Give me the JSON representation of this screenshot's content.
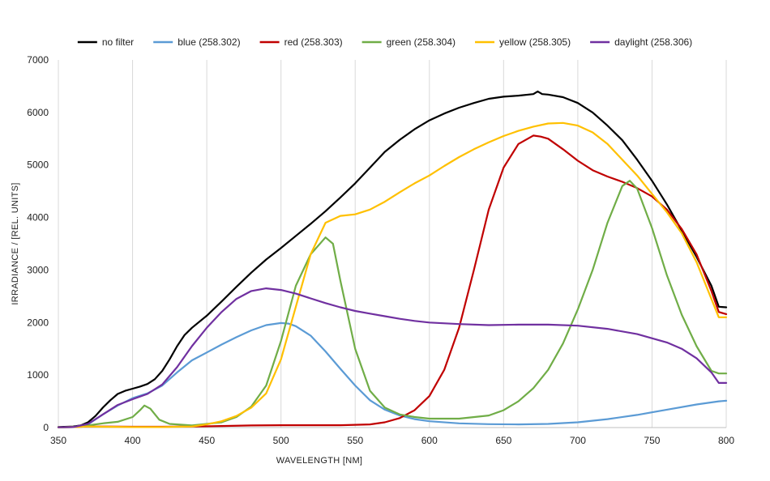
{
  "chart_data": {
    "type": "line",
    "title": "",
    "xlabel": "WAVELENGTH [NM]",
    "ylabel": "IRRADIANCE / [REL. UNITS]",
    "xlim": [
      350,
      800
    ],
    "ylim": [
      0,
      7000
    ],
    "x_ticks": [
      350,
      400,
      450,
      500,
      550,
      600,
      650,
      700,
      750,
      800
    ],
    "y_ticks": [
      0,
      1000,
      2000,
      3000,
      4000,
      5000,
      6000,
      7000
    ],
    "grid": "vertical",
    "legend_position": "top",
    "series": [
      {
        "name": "no filter",
        "color": "#000000",
        "points": [
          [
            350,
            10
          ],
          [
            360,
            20
          ],
          [
            365,
            40
          ],
          [
            370,
            100
          ],
          [
            375,
            220
          ],
          [
            380,
            380
          ],
          [
            385,
            520
          ],
          [
            390,
            640
          ],
          [
            395,
            700
          ],
          [
            400,
            740
          ],
          [
            405,
            780
          ],
          [
            410,
            830
          ],
          [
            415,
            920
          ],
          [
            420,
            1080
          ],
          [
            425,
            1300
          ],
          [
            430,
            1550
          ],
          [
            435,
            1760
          ],
          [
            440,
            1900
          ],
          [
            450,
            2130
          ],
          [
            460,
            2400
          ],
          [
            470,
            2680
          ],
          [
            480,
            2950
          ],
          [
            490,
            3200
          ],
          [
            500,
            3420
          ],
          [
            510,
            3650
          ],
          [
            520,
            3880
          ],
          [
            530,
            4120
          ],
          [
            540,
            4380
          ],
          [
            550,
            4650
          ],
          [
            560,
            4950
          ],
          [
            570,
            5250
          ],
          [
            580,
            5480
          ],
          [
            590,
            5680
          ],
          [
            600,
            5850
          ],
          [
            610,
            5980
          ],
          [
            620,
            6090
          ],
          [
            630,
            6180
          ],
          [
            640,
            6260
          ],
          [
            650,
            6300
          ],
          [
            660,
            6320
          ],
          [
            670,
            6350
          ],
          [
            673,
            6400
          ],
          [
            676,
            6350
          ],
          [
            680,
            6340
          ],
          [
            690,
            6290
          ],
          [
            700,
            6180
          ],
          [
            710,
            6000
          ],
          [
            720,
            5750
          ],
          [
            730,
            5470
          ],
          [
            740,
            5100
          ],
          [
            750,
            4700
          ],
          [
            760,
            4250
          ],
          [
            770,
            3750
          ],
          [
            780,
            3250
          ],
          [
            790,
            2700
          ],
          [
            795,
            2300
          ],
          [
            800,
            2290
          ]
        ]
      },
      {
        "name": "blue (258.302)",
        "color": "#5b9bd5",
        "points": [
          [
            350,
            5
          ],
          [
            360,
            10
          ],
          [
            370,
            60
          ],
          [
            380,
            250
          ],
          [
            390,
            420
          ],
          [
            400,
            560
          ],
          [
            410,
            650
          ],
          [
            420,
            800
          ],
          [
            430,
            1050
          ],
          [
            440,
            1280
          ],
          [
            450,
            1430
          ],
          [
            460,
            1580
          ],
          [
            470,
            1720
          ],
          [
            480,
            1850
          ],
          [
            490,
            1950
          ],
          [
            500,
            1990
          ],
          [
            505,
            1980
          ],
          [
            510,
            1930
          ],
          [
            520,
            1750
          ],
          [
            530,
            1450
          ],
          [
            540,
            1120
          ],
          [
            550,
            800
          ],
          [
            560,
            520
          ],
          [
            570,
            340
          ],
          [
            580,
            230
          ],
          [
            590,
            160
          ],
          [
            600,
            120
          ],
          [
            620,
            80
          ],
          [
            640,
            65
          ],
          [
            660,
            60
          ],
          [
            680,
            70
          ],
          [
            700,
            100
          ],
          [
            720,
            160
          ],
          [
            740,
            240
          ],
          [
            760,
            340
          ],
          [
            780,
            440
          ],
          [
            795,
            500
          ],
          [
            800,
            510
          ]
        ]
      },
      {
        "name": "red (258.303)",
        "color": "#c00000",
        "points": [
          [
            350,
            5
          ],
          [
            360,
            10
          ],
          [
            370,
            20
          ],
          [
            380,
            20
          ],
          [
            400,
            15
          ],
          [
            420,
            15
          ],
          [
            440,
            20
          ],
          [
            460,
            30
          ],
          [
            480,
            40
          ],
          [
            500,
            45
          ],
          [
            520,
            45
          ],
          [
            540,
            45
          ],
          [
            560,
            60
          ],
          [
            570,
            100
          ],
          [
            580,
            180
          ],
          [
            590,
            330
          ],
          [
            600,
            600
          ],
          [
            610,
            1100
          ],
          [
            620,
            1900
          ],
          [
            630,
            3000
          ],
          [
            640,
            4150
          ],
          [
            650,
            4950
          ],
          [
            660,
            5400
          ],
          [
            670,
            5560
          ],
          [
            675,
            5540
          ],
          [
            680,
            5500
          ],
          [
            690,
            5300
          ],
          [
            700,
            5080
          ],
          [
            710,
            4900
          ],
          [
            720,
            4780
          ],
          [
            730,
            4680
          ],
          [
            740,
            4560
          ],
          [
            750,
            4400
          ],
          [
            760,
            4150
          ],
          [
            770,
            3780
          ],
          [
            780,
            3300
          ],
          [
            790,
            2600
          ],
          [
            795,
            2200
          ],
          [
            800,
            2160
          ]
        ]
      },
      {
        "name": "green (258.304)",
        "color": "#70ad47",
        "points": [
          [
            350,
            5
          ],
          [
            360,
            10
          ],
          [
            370,
            40
          ],
          [
            380,
            80
          ],
          [
            390,
            110
          ],
          [
            400,
            200
          ],
          [
            405,
            330
          ],
          [
            408,
            420
          ],
          [
            412,
            360
          ],
          [
            418,
            150
          ],
          [
            425,
            70
          ],
          [
            440,
            40
          ],
          [
            460,
            100
          ],
          [
            470,
            200
          ],
          [
            480,
            400
          ],
          [
            490,
            800
          ],
          [
            500,
            1650
          ],
          [
            510,
            2700
          ],
          [
            520,
            3300
          ],
          [
            530,
            3620
          ],
          [
            535,
            3500
          ],
          [
            540,
            2800
          ],
          [
            550,
            1500
          ],
          [
            560,
            700
          ],
          [
            570,
            380
          ],
          [
            580,
            250
          ],
          [
            590,
            200
          ],
          [
            600,
            170
          ],
          [
            620,
            170
          ],
          [
            640,
            230
          ],
          [
            650,
            330
          ],
          [
            660,
            500
          ],
          [
            670,
            750
          ],
          [
            680,
            1100
          ],
          [
            690,
            1600
          ],
          [
            700,
            2250
          ],
          [
            710,
            3000
          ],
          [
            720,
            3900
          ],
          [
            730,
            4600
          ],
          [
            735,
            4700
          ],
          [
            740,
            4550
          ],
          [
            750,
            3800
          ],
          [
            760,
            2900
          ],
          [
            770,
            2150
          ],
          [
            780,
            1550
          ],
          [
            790,
            1080
          ],
          [
            795,
            1030
          ],
          [
            800,
            1030
          ]
        ]
      },
      {
        "name": "yellow (258.305)",
        "color": "#ffc000",
        "points": [
          [
            350,
            5
          ],
          [
            360,
            10
          ],
          [
            370,
            20
          ],
          [
            380,
            15
          ],
          [
            400,
            10
          ],
          [
            420,
            10
          ],
          [
            440,
            20
          ],
          [
            450,
            60
          ],
          [
            460,
            120
          ],
          [
            470,
            220
          ],
          [
            480,
            380
          ],
          [
            490,
            650
          ],
          [
            500,
            1300
          ],
          [
            510,
            2300
          ],
          [
            520,
            3300
          ],
          [
            530,
            3900
          ],
          [
            540,
            4030
          ],
          [
            550,
            4060
          ],
          [
            560,
            4150
          ],
          [
            570,
            4300
          ],
          [
            580,
            4480
          ],
          [
            590,
            4650
          ],
          [
            600,
            4800
          ],
          [
            610,
            4980
          ],
          [
            620,
            5150
          ],
          [
            630,
            5300
          ],
          [
            640,
            5430
          ],
          [
            650,
            5550
          ],
          [
            660,
            5650
          ],
          [
            670,
            5730
          ],
          [
            680,
            5790
          ],
          [
            690,
            5800
          ],
          [
            700,
            5750
          ],
          [
            710,
            5620
          ],
          [
            720,
            5400
          ],
          [
            730,
            5100
          ],
          [
            740,
            4800
          ],
          [
            750,
            4450
          ],
          [
            760,
            4100
          ],
          [
            770,
            3700
          ],
          [
            780,
            3150
          ],
          [
            790,
            2450
          ],
          [
            795,
            2100
          ],
          [
            800,
            2100
          ]
        ]
      },
      {
        "name": "daylight (258.306)",
        "color": "#7030a0",
        "points": [
          [
            350,
            5
          ],
          [
            360,
            10
          ],
          [
            370,
            70
          ],
          [
            380,
            250
          ],
          [
            390,
            430
          ],
          [
            400,
            540
          ],
          [
            410,
            640
          ],
          [
            420,
            820
          ],
          [
            430,
            1150
          ],
          [
            440,
            1550
          ],
          [
            450,
            1900
          ],
          [
            460,
            2200
          ],
          [
            470,
            2450
          ],
          [
            480,
            2600
          ],
          [
            490,
            2650
          ],
          [
            500,
            2620
          ],
          [
            510,
            2550
          ],
          [
            520,
            2460
          ],
          [
            530,
            2370
          ],
          [
            540,
            2290
          ],
          [
            550,
            2220
          ],
          [
            560,
            2170
          ],
          [
            570,
            2120
          ],
          [
            580,
            2070
          ],
          [
            590,
            2030
          ],
          [
            600,
            2000
          ],
          [
            620,
            1970
          ],
          [
            640,
            1950
          ],
          [
            660,
            1960
          ],
          [
            680,
            1960
          ],
          [
            700,
            1940
          ],
          [
            720,
            1880
          ],
          [
            740,
            1780
          ],
          [
            760,
            1620
          ],
          [
            770,
            1500
          ],
          [
            780,
            1320
          ],
          [
            790,
            1050
          ],
          [
            795,
            850
          ],
          [
            800,
            850
          ]
        ]
      }
    ]
  }
}
